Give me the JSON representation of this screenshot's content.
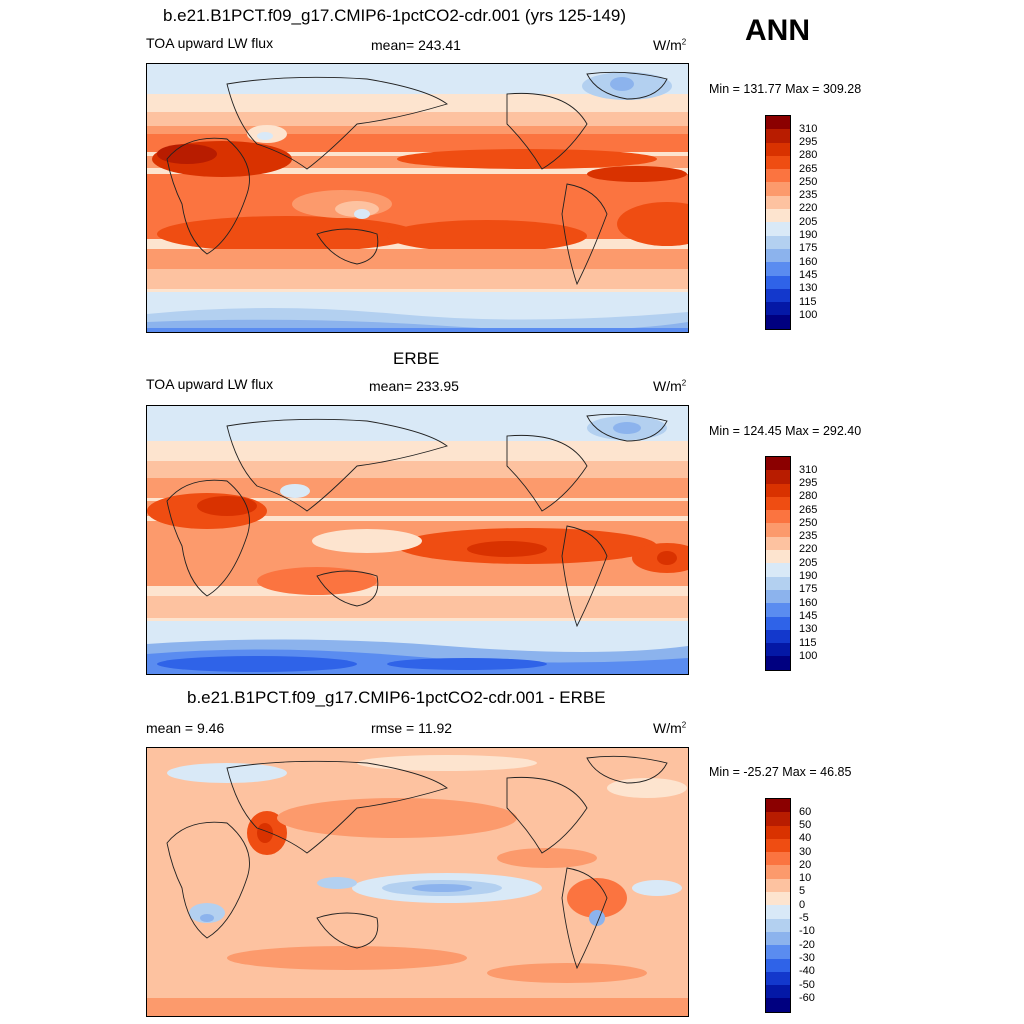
{
  "season": "ANN",
  "panels": [
    {
      "title": "b.e21.B1PCT.f09_g17.CMIP6-1pctCO2-cdr.001 (yrs 125-149)",
      "left_label": "TOA upward LW flux",
      "center_label": "mean= 243.41",
      "unit_base": "W/m",
      "unit_exp": "2",
      "minmax": "Min = 131.77 Max = 309.28"
    },
    {
      "title": "ERBE",
      "left_label": "TOA upward LW flux",
      "center_label": "mean= 233.95",
      "unit_base": "W/m",
      "unit_exp": "2",
      "minmax": "Min = 124.45 Max = 292.40"
    },
    {
      "title": "b.e21.B1PCT.f09_g17.CMIP6-1pctCO2-cdr.001 - ERBE",
      "left_label": "mean =   9.46",
      "center_label": "rmse =  11.92",
      "unit_base": "W/m",
      "unit_exp": "2",
      "minmax": "Min = -25.27 Max =  46.85"
    }
  ],
  "colorbars": {
    "flux": {
      "labels": [
        "310",
        "295",
        "280",
        "265",
        "250",
        "235",
        "220",
        "205",
        "190",
        "175",
        "160",
        "145",
        "130",
        "115",
        "100"
      ],
      "colors": [
        "#8b0000",
        "#b81c00",
        "#d93200",
        "#ef4d12",
        "#fb7440",
        "#fc9a6c",
        "#fdc2a0",
        "#fde4cf",
        "#d9e9f7",
        "#b3d0f0",
        "#8cb3ed",
        "#5a8cf0",
        "#2f63e8",
        "#1338cc",
        "#0418a6",
        "#000080"
      ]
    },
    "diff": {
      "labels": [
        "60",
        "50",
        "40",
        "30",
        "20",
        "10",
        "5",
        "0",
        "-5",
        "-10",
        "-20",
        "-30",
        "-40",
        "-50",
        "-60"
      ],
      "colors": [
        "#8b0000",
        "#b81c00",
        "#d93200",
        "#ef4d12",
        "#fb7440",
        "#fc9a6c",
        "#fdc2a0",
        "#fde4cf",
        "#d9e9f7",
        "#b3d0f0",
        "#8cb3ed",
        "#5a8cf0",
        "#2f63e8",
        "#1338cc",
        "#0418a6",
        "#000080"
      ]
    }
  }
}
